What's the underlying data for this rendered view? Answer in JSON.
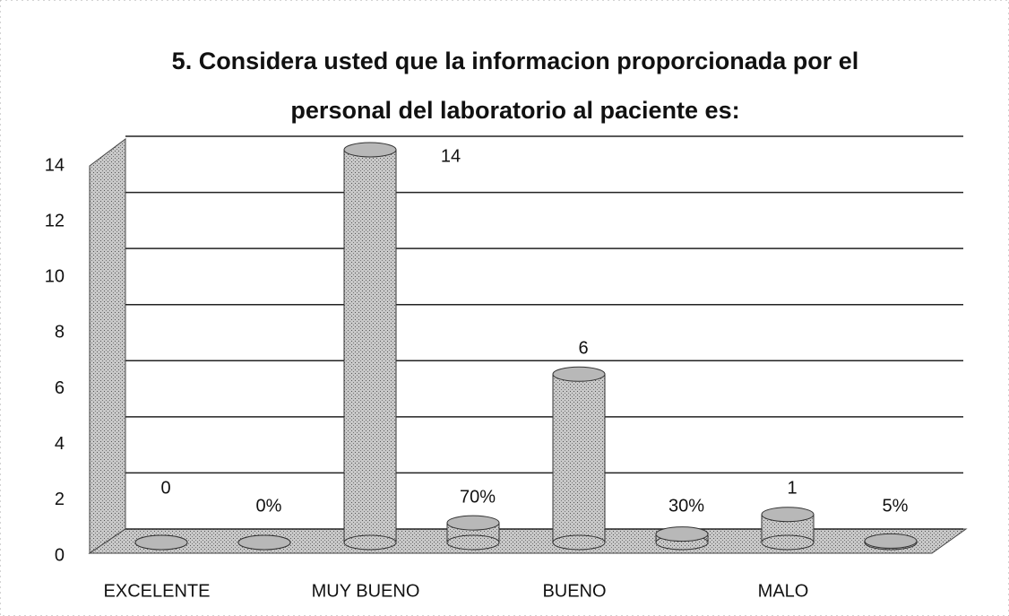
{
  "chart_data": {
    "type": "bar3d",
    "title": "5. Considera usted que la informacion proporcionada por el personal del laboratorio al paciente es:",
    "categories": [
      "EXCELENTE",
      "MUY BUENO",
      "BUENO",
      "MALO"
    ],
    "series": [
      {
        "color": "#b8b8b8",
        "values": [
          0,
          14,
          6,
          1
        ]
      },
      {
        "color": "#b8b8b8",
        "values": [
          0,
          0.7,
          0.3,
          0.05
        ],
        "value_labels": [
          "0%",
          "70%",
          "30%",
          "5%"
        ]
      }
    ],
    "ylim": [
      0,
      14
    ],
    "yticks": [
      0,
      2,
      4,
      6,
      8,
      10,
      12,
      14
    ],
    "grid": true
  }
}
